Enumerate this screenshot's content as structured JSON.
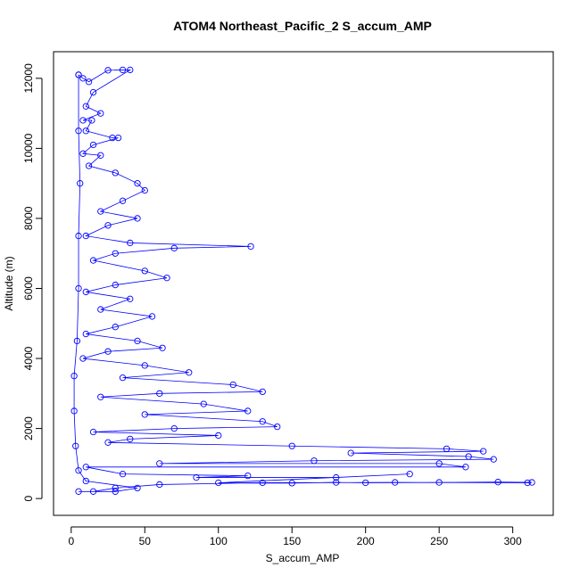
{
  "chart_data": {
    "type": "line",
    "marker": "circle",
    "title": "ATOM4 Northeast_Pacific_2 S_accum_AMP",
    "xlabel": "S_accum_AMP",
    "ylabel": "Altitude (m)",
    "color": "#0000ff",
    "x": [
      5,
      8,
      12,
      25,
      35,
      40,
      15,
      10,
      20,
      8,
      14,
      10,
      28,
      32,
      15,
      8,
      20,
      12,
      30,
      45,
      50,
      35,
      20,
      45,
      25,
      10,
      40,
      122,
      70,
      30,
      15,
      50,
      65,
      30,
      10,
      40,
      20,
      55,
      30,
      10,
      45,
      62,
      25,
      8,
      50,
      80,
      35,
      110,
      130,
      60,
      20,
      90,
      120,
      50,
      130,
      140,
      70,
      15,
      100,
      40,
      25,
      150,
      255,
      280,
      190,
      270,
      287,
      165,
      60,
      250,
      268,
      10,
      35,
      120,
      85,
      180,
      230,
      100,
      150,
      180,
      200,
      250,
      290,
      313,
      310,
      220,
      130,
      60,
      30,
      15,
      5,
      30,
      45,
      10,
      5,
      3,
      2,
      2,
      4,
      5,
      5,
      6,
      5,
      5
    ],
    "values": [
      12100,
      12000,
      11900,
      12230,
      12240,
      12240,
      11600,
      11200,
      11000,
      10800,
      10800,
      10500,
      10300,
      10300,
      10100,
      9850,
      9800,
      9500,
      9300,
      9000,
      8800,
      8500,
      8200,
      8000,
      7800,
      7500,
      7300,
      7200,
      7150,
      7000,
      6800,
      6500,
      6300,
      6100,
      5900,
      5700,
      5400,
      5200,
      4900,
      4700,
      4500,
      4300,
      4200,
      4000,
      3800,
      3600,
      3450,
      3250,
      3050,
      3000,
      2900,
      2700,
      2500,
      2400,
      2200,
      2050,
      2000,
      1900,
      1800,
      1700,
      1600,
      1500,
      1420,
      1350,
      1300,
      1200,
      1120,
      1080,
      1000,
      1000,
      900,
      900,
      700,
      650,
      600,
      600,
      700,
      450,
      440,
      460,
      450,
      460,
      470,
      460,
      450,
      460,
      450,
      400,
      300,
      200,
      200,
      200,
      300,
      500,
      800,
      1500,
      2500,
      3500,
      4500,
      6000,
      7500,
      9000,
      10500,
      12100
    ],
    "xlim": [
      -12,
      327.5
    ],
    "ylim": [
      -480,
      12760
    ],
    "xticks": [
      0,
      50,
      100,
      150,
      200,
      250,
      300
    ],
    "yticks": [
      0,
      2000,
      4000,
      6000,
      8000,
      10000,
      12000
    ]
  }
}
